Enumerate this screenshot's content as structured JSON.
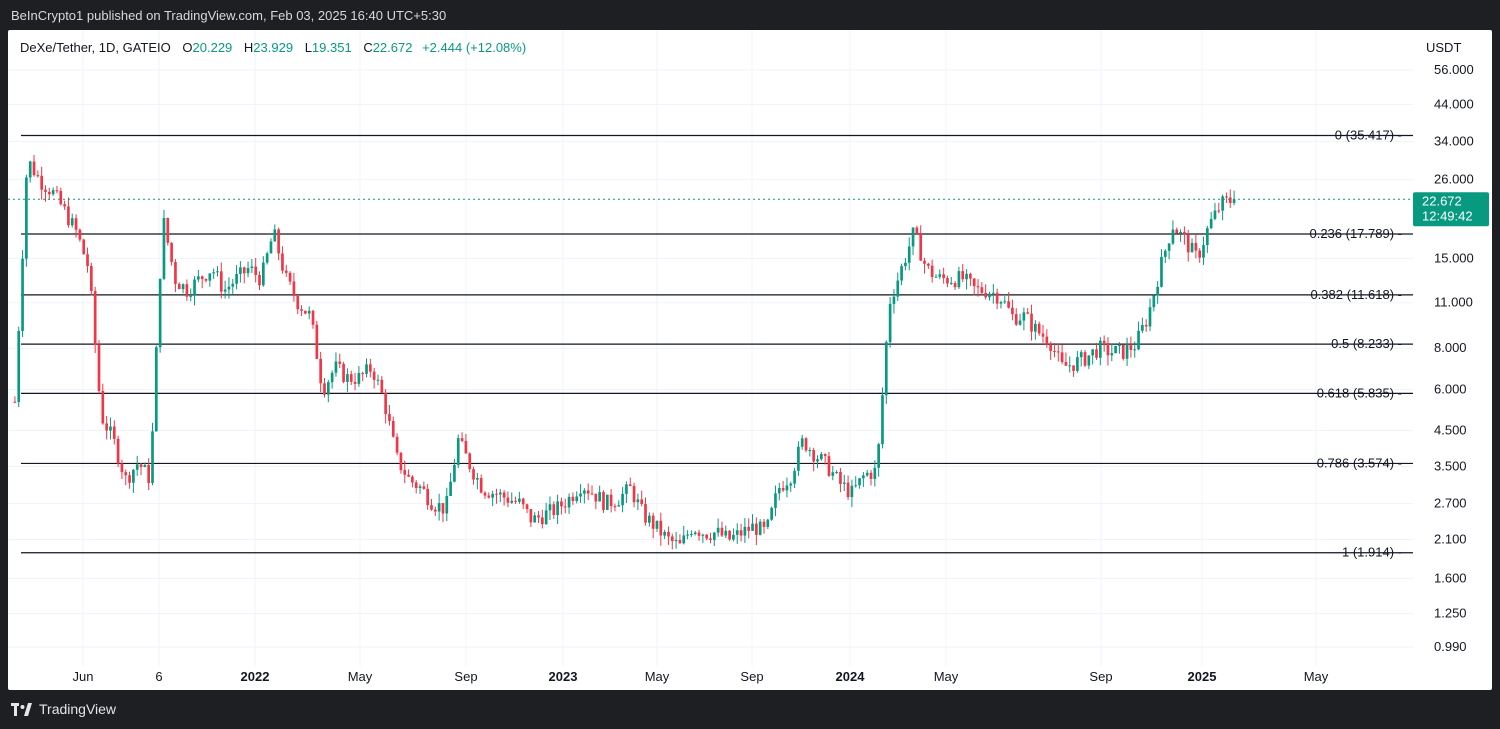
{
  "header": {
    "publisher": "BeInCrypto1 published on TradingView.com, Feb 03, 2025 16:40 UTC+5:30"
  },
  "legend": {
    "symbol": "DeXe/Tether, 1D, GATEIO",
    "open_label": "O",
    "open": "20.229",
    "high_label": "H",
    "high": "23.929",
    "low_label": "L",
    "low": "19.351",
    "close_label": "C",
    "close": "22.672",
    "change": "+2.444 (+12.08%)"
  },
  "currency": "USDT",
  "last_price": {
    "price": "22.672",
    "countdown": "12:49:42",
    "color": "#089981"
  },
  "footer": {
    "brand": "TradingView"
  },
  "colors": {
    "up": "#089981",
    "down": "#f23645",
    "fib": "#131722",
    "grid": "#f0f3fa"
  },
  "chart_data": {
    "type": "candlestick",
    "y_scale": "log",
    "y_ticks": [
      "56.000",
      "44.000",
      "34.000",
      "26.000",
      "15.000",
      "11.000",
      "8.000",
      "6.000",
      "4.500",
      "3.500",
      "2.700",
      "2.100",
      "1.600",
      "1.250",
      "0.990"
    ],
    "x_ticks": [
      {
        "label": "Jun",
        "bold": false
      },
      {
        "label": "6",
        "bold": false
      },
      {
        "label": "2022",
        "bold": true
      },
      {
        "label": "May",
        "bold": false
      },
      {
        "label": "Sep",
        "bold": false
      },
      {
        "label": "2023",
        "bold": true
      },
      {
        "label": "May",
        "bold": false
      },
      {
        "label": "Sep",
        "bold": false
      },
      {
        "label": "2024",
        "bold": true
      },
      {
        "label": "May",
        "bold": false
      },
      {
        "label": "Sep",
        "bold": false
      },
      {
        "label": "2025",
        "bold": true
      },
      {
        "label": "May",
        "bold": false
      }
    ],
    "fib_levels": [
      {
        "label": "0 (35.417)",
        "value": 35.417
      },
      {
        "label": "0.236 (17.789)",
        "value": 17.789
      },
      {
        "label": "0.382 (11.618)",
        "value": 11.618
      },
      {
        "label": "0.5 (8.233)",
        "value": 8.233
      },
      {
        "label": "0.618 (5.835)",
        "value": 5.835
      },
      {
        "label": "0.786 (3.574)",
        "value": 3.574
      },
      {
        "label": "1 (1.914)",
        "value": 1.914
      }
    ],
    "price_path": [
      [
        0,
        5.5
      ],
      [
        1,
        30
      ],
      [
        2,
        26
      ],
      [
        3,
        24
      ],
      [
        4,
        21
      ],
      [
        5,
        18
      ],
      [
        6,
        14
      ],
      [
        7,
        5.0
      ],
      [
        8,
        4.2
      ],
      [
        9,
        3.2
      ],
      [
        10,
        3.6
      ],
      [
        11,
        3.2
      ],
      [
        12,
        20
      ],
      [
        13,
        13
      ],
      [
        14,
        12
      ],
      [
        15,
        13
      ],
      [
        16,
        14
      ],
      [
        17,
        12
      ],
      [
        18,
        13
      ],
      [
        19,
        14
      ],
      [
        20,
        13
      ],
      [
        21,
        18
      ],
      [
        22,
        13
      ],
      [
        23,
        11
      ],
      [
        24,
        10
      ],
      [
        25,
        6
      ],
      [
        26,
        7
      ],
      [
        27,
        6.5
      ],
      [
        28,
        6.5
      ],
      [
        29,
        7
      ],
      [
        30,
        5.5
      ],
      [
        31,
        3.7
      ],
      [
        32,
        3.2
      ],
      [
        33,
        3.0
      ],
      [
        34,
        2.7
      ],
      [
        35,
        2.6
      ],
      [
        36,
        4.2
      ],
      [
        37,
        3.5
      ],
      [
        38,
        3.0
      ],
      [
        39,
        2.9
      ],
      [
        40,
        2.8
      ],
      [
        41,
        2.7
      ],
      [
        42,
        2.4
      ],
      [
        43,
        2.5
      ],
      [
        44,
        2.6
      ],
      [
        45,
        2.8
      ],
      [
        46,
        3.1
      ],
      [
        47,
        2.9
      ],
      [
        48,
        2.7
      ],
      [
        49,
        2.8
      ],
      [
        50,
        3.0
      ],
      [
        51,
        2.5
      ],
      [
        52,
        2.3
      ],
      [
        53,
        2.1
      ],
      [
        54,
        2.0
      ],
      [
        55,
        2.3
      ],
      [
        56,
        2.2
      ],
      [
        57,
        2.2
      ],
      [
        58,
        2.1
      ],
      [
        59,
        2.2
      ],
      [
        60,
        2.3
      ],
      [
        61,
        2.2
      ],
      [
        62,
        3.0
      ],
      [
        63,
        3.3
      ],
      [
        64,
        4.2
      ],
      [
        65,
        3.8
      ],
      [
        66,
        3.5
      ],
      [
        67,
        3.1
      ],
      [
        68,
        2.9
      ],
      [
        69,
        3.3
      ],
      [
        70,
        3.4
      ],
      [
        71,
        11
      ],
      [
        72,
        14
      ],
      [
        73,
        18
      ],
      [
        74,
        14
      ],
      [
        75,
        13
      ],
      [
        76,
        13
      ],
      [
        77,
        13
      ],
      [
        78,
        12
      ],
      [
        79,
        12
      ],
      [
        80,
        11.5
      ],
      [
        81,
        10
      ],
      [
        82,
        10
      ],
      [
        83,
        9
      ],
      [
        84,
        8.5
      ],
      [
        85,
        7
      ],
      [
        86,
        7.2
      ],
      [
        87,
        7.5
      ],
      [
        88,
        8
      ],
      [
        89,
        7.8
      ],
      [
        90,
        7.8
      ],
      [
        91,
        8.2
      ],
      [
        92,
        10
      ],
      [
        93,
        14
      ],
      [
        94,
        19
      ],
      [
        95,
        17
      ],
      [
        96,
        15
      ],
      [
        97,
        19
      ],
      [
        98,
        22
      ],
      [
        99,
        22.67
      ]
    ],
    "last_close": 22.672
  }
}
